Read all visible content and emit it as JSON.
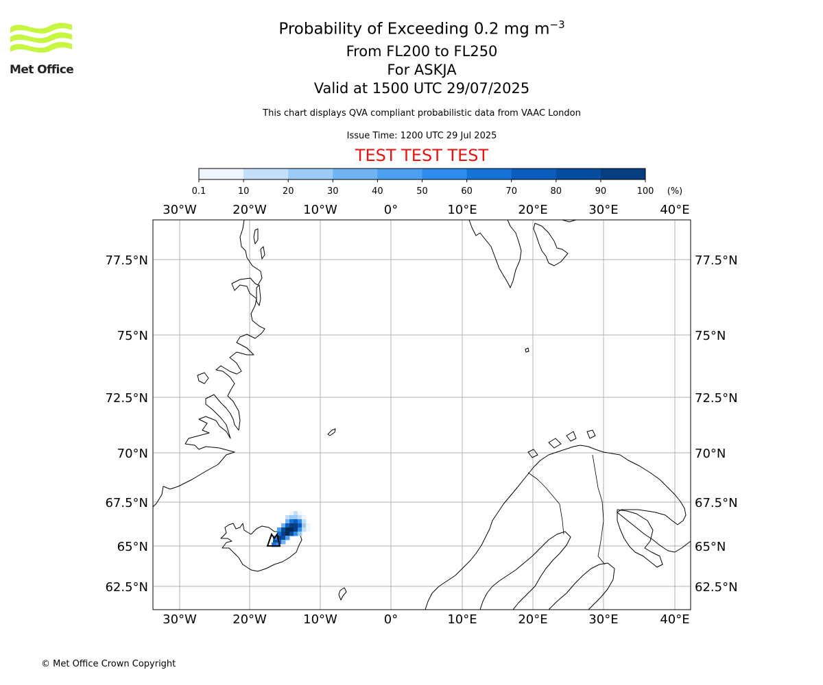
{
  "logo": {
    "text": "Met Office",
    "color": "#c6f542"
  },
  "title": {
    "main": "Probability of Exceeding 0.2 mg m",
    "superscript": "−3"
  },
  "subtitle_lines": [
    "From FL200 to FL250",
    "For ASKJA",
    "Valid at 1500 UTC 29/07/2025"
  ],
  "disclaimer": "This chart displays QVA compliant probabilistic data from VAAC London",
  "issue_time": "Issue Time: 1200 UTC 29 Jul 2025",
  "test_banner": "TEST TEST TEST",
  "colorbar": {
    "unit": "(%)",
    "ticks": [
      "0.1",
      "10",
      "20",
      "30",
      "40",
      "50",
      "60",
      "70",
      "80",
      "90",
      "100"
    ],
    "colors": [
      "#eef5fd",
      "#c4dffa",
      "#9ccbf6",
      "#70b4f2",
      "#4ca0ef",
      "#2d8ced",
      "#1572d7",
      "#0a5cbd",
      "#074d9f",
      "#063e81",
      "#042a58"
    ]
  },
  "map": {
    "lon_labels": [
      "30°W",
      "20°W",
      "10°W",
      "0°",
      "10°E",
      "20°E",
      "30°E",
      "40°E"
    ],
    "lat_labels": [
      "77.5°N",
      "75°N",
      "72.5°N",
      "70°N",
      "67.5°N",
      "65°N",
      "62.5°N"
    ],
    "grid_color": "#b0b0b0",
    "volcano": "ASKJA"
  },
  "copyright": "© Met Office Crown Copyright"
}
